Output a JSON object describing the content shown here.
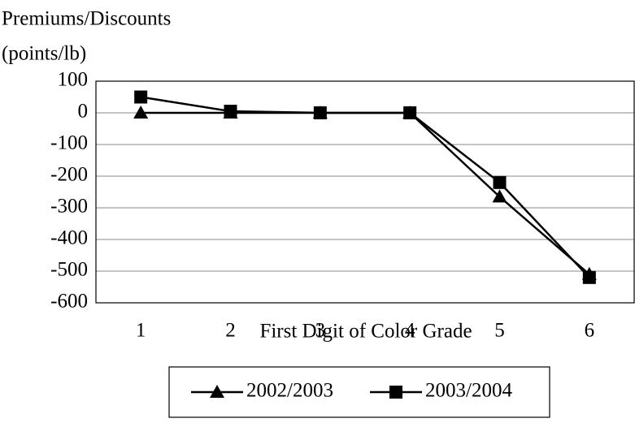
{
  "chart_data": {
    "type": "line",
    "ylabel": [
      "Premiums/Discounts",
      "(points/lb)"
    ],
    "xlabel": "First Digit of Color Grade",
    "categories": [
      "1",
      "2",
      "3",
      "4",
      "5",
      "6"
    ],
    "series": [
      {
        "name": "2002/2003",
        "color": "#000000",
        "marker": "triangle",
        "values": [
          0,
          0,
          0,
          0,
          -265,
          -510
        ]
      },
      {
        "name": "2003/2004",
        "color": "#000000",
        "marker": "square",
        "values": [
          50,
          5,
          0,
          0,
          -220,
          -520
        ]
      }
    ],
    "ylim": [
      -600,
      100
    ],
    "yticks": [
      -600,
      -500,
      -400,
      -300,
      -200,
      -100,
      0,
      100
    ],
    "grid": true
  }
}
